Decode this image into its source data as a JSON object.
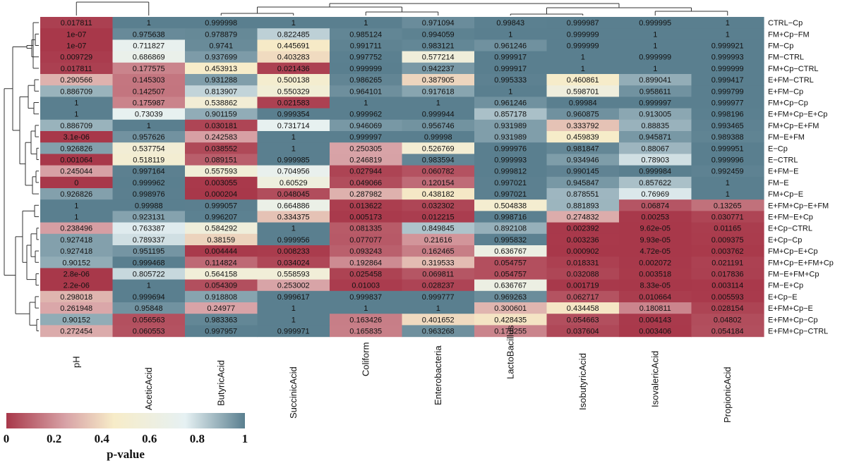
{
  "chart_data": {
    "type": "heatmap",
    "title": "",
    "columns": [
      "pH",
      "AceticAcid",
      "ButyricAcid",
      "SuccinicAcid",
      "Coliform",
      "Enterobacteria",
      "LactoBacillus",
      "IsobutyricAcid",
      "IsovalericAcid",
      "PropionicAcid"
    ],
    "rows": [
      "CTRL−Cp",
      "FM+Cp−FM",
      "FM−Cp",
      "FM−CTRL",
      "FM+Cp−CTRL",
      "E+FM−CTRL",
      "E+FM−Cp",
      "FM+Cp−Cp",
      "E+FM+Cp−E+Cp",
      "FM+Cp−E+FM",
      "FM−E+FM",
      "E−Cp",
      "E−CTRL",
      "E+FM−E",
      "FM−E",
      "FM+Cp−E",
      "E+FM+Cp−E+FM",
      "E+FM−E+Cp",
      "E+Cp−CTRL",
      "E+Cp−Cp",
      "FM+Cp−E+Cp",
      "FM+Cp−E+FM+Cp",
      "FM−E+FM+Cp",
      "FM−E+Cp",
      "E+Cp−E",
      "E+FM+Cp−E",
      "E+FM+Cp−Cp",
      "E+FM+Cp−CTRL"
    ],
    "values": [
      [
        "0.017811",
        "1",
        "0.999998",
        "1",
        "1",
        "0.971094",
        "0.99843",
        "0.999987",
        "0.999995",
        "1"
      ],
      [
        "1e-07",
        "0.975638",
        "0.978879",
        "0.822485",
        "0.985124",
        "0.994059",
        "1",
        "0.999999",
        "1",
        "1"
      ],
      [
        "1e-07",
        "0.711827",
        "0.9741",
        "0.445691",
        "0.991711",
        "0.983121",
        "0.961246",
        "0.999999",
        "1",
        "0.999921"
      ],
      [
        "0.009729",
        "0.686869",
        "0.937699",
        "0.403283",
        "0.997752",
        "0.577214",
        "0.999917",
        "1",
        "0.999999",
        "0.999993"
      ],
      [
        "0.017811",
        "0.177575",
        "0.453913",
        "0.021436",
        "0.999999",
        "0.942237",
        "0.999917",
        "1",
        "1",
        "0.999999"
      ],
      [
        "0.290566",
        "0.145303",
        "0.931288",
        "0.500138",
        "0.986265",
        "0.387905",
        "0.995333",
        "0.460861",
        "0.899041",
        "0.999417"
      ],
      [
        "0.886709",
        "0.142507",
        "0.813907",
        "0.550329",
        "0.964101",
        "0.917618",
        "1",
        "0.598701",
        "0.958611",
        "0.999799"
      ],
      [
        "1",
        "0.175987",
        "0.538862",
        "0.021583",
        "1",
        "1",
        "0.961246",
        "0.99984",
        "0.999997",
        "0.999977"
      ],
      [
        "1",
        "0.73039",
        "0.901159",
        "0.999354",
        "0.999962",
        "0.999944",
        "0.857178",
        "0.960875",
        "0.913005",
        "0.998196"
      ],
      [
        "0.886709",
        "1",
        "0.030181",
        "0.731714",
        "0.946069",
        "0.956746",
        "0.931989",
        "0.333792",
        "0.88835",
        "0.993465"
      ],
      [
        "3.1e-06",
        "0.957626",
        "0.242583",
        "1",
        "0.999997",
        "0.99998",
        "0.931989",
        "0.459839",
        "0.945871",
        "0.989388"
      ],
      [
        "0.926826",
        "0.537754",
        "0.038552",
        "1",
        "0.250305",
        "0.526769",
        "0.999976",
        "0.981847",
        "0.88067",
        "0.999951"
      ],
      [
        "0.001064",
        "0.518119",
        "0.089151",
        "0.999985",
        "0.246819",
        "0.983594",
        "0.999993",
        "0.934946",
        "0.78903",
        "0.999996"
      ],
      [
        "0.245044",
        "0.997164",
        "0.557593",
        "0.704956",
        "0.027944",
        "0.060782",
        "0.999812",
        "0.990145",
        "0.999984",
        "0.992459"
      ],
      [
        "0",
        "0.999962",
        "0.003055",
        "0.60529",
        "0.049066",
        "0.120154",
        "0.997021",
        "0.945847",
        "0.857622",
        "1"
      ],
      [
        "0.926826",
        "0.998976",
        "0.000204",
        "0.048045",
        "0.287982",
        "0.438182",
        "0.997021",
        "0.878551",
        "0.76969",
        "1"
      ],
      [
        "1",
        "0.99988",
        "0.999057",
        "0.664886",
        "0.013622",
        "0.032302",
        "0.504838",
        "0.881893",
        "0.06874",
        "0.13265"
      ],
      [
        "1",
        "0.923131",
        "0.996207",
        "0.334375",
        "0.005173",
        "0.012215",
        "0.998716",
        "0.274832",
        "0.00253",
        "0.030771"
      ],
      [
        "0.238496",
        "0.763387",
        "0.584292",
        "1",
        "0.081335",
        "0.849845",
        "0.892108",
        "0.002392",
        "9.62e-05",
        "0.01165"
      ],
      [
        "0.927418",
        "0.789337",
        "0.38159",
        "0.999956",
        "0.077077",
        "0.21616",
        "0.995832",
        "0.003236",
        "9.93e-05",
        "0.009375"
      ],
      [
        "0.927418",
        "0.951195",
        "0.004444",
        "0.008233",
        "0.093243",
        "0.162465",
        "0.636767",
        "0.000902",
        "4.72e-05",
        "0.003762"
      ],
      [
        "0.90152",
        "0.999468",
        "0.114824",
        "0.034024",
        "0.192864",
        "0.319533",
        "0.054757",
        "0.018331",
        "0.002072",
        "0.021191"
      ],
      [
        "2.8e-06",
        "0.805722",
        "0.564158",
        "0.558593",
        "0.025458",
        "0.069811",
        "0.054757",
        "0.032088",
        "0.003518",
        "0.017836"
      ],
      [
        "2.2e-06",
        "1",
        "0.054309",
        "0.253002",
        "0.01003",
        "0.028237",
        "0.636767",
        "0.001719",
        "8.33e-05",
        "0.003114"
      ],
      [
        "0.298018",
        "0.999694",
        "0.918808",
        "0.999617",
        "0.999837",
        "0.999777",
        "0.969263",
        "0.062717",
        "0.010664",
        "0.005593"
      ],
      [
        "0.261948",
        "0.95848",
        "0.24977",
        "1",
        "1",
        "1",
        "0.300601",
        "0.434458",
        "0.180811",
        "0.028154"
      ],
      [
        "0.90152",
        "0.056563",
        "0.983363",
        "1",
        "0.163426",
        "0.401652",
        "0.428435",
        "0.054663",
        "0.004143",
        "0.04802"
      ],
      [
        "0.272454",
        "0.060553",
        "0.997957",
        "0.999971",
        "0.165835",
        "0.963268",
        "0.178255",
        "0.037604",
        "0.003406",
        "0.054184"
      ]
    ],
    "legend": {
      "title": "p-value",
      "ticks": [
        "0",
        "0.2",
        "0.4",
        "0.6",
        "0.8",
        "1"
      ],
      "range": [
        0,
        1
      ],
      "colors": [
        "#a8384a",
        "#d8a3a7",
        "#f7ecc8",
        "#e6f1f3",
        "#5a7f8f"
      ]
    },
    "dendrogram": "column and row clustering trees shown"
  }
}
